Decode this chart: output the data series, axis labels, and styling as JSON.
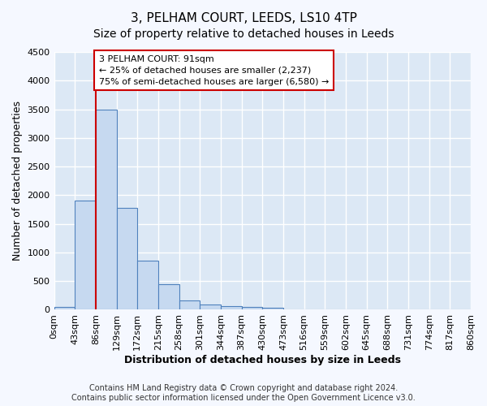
{
  "title_line1": "3, PELHAM COURT, LEEDS, LS10 4TP",
  "title_line2": "Size of property relative to detached houses in Leeds",
  "xlabel": "Distribution of detached houses by size in Leeds",
  "ylabel": "Number of detached properties",
  "bin_labels": [
    "0sqm",
    "43sqm",
    "86sqm",
    "129sqm",
    "172sqm",
    "215sqm",
    "258sqm",
    "301sqm",
    "344sqm",
    "387sqm",
    "430sqm",
    "473sqm",
    "516sqm",
    "559sqm",
    "602sqm",
    "645sqm",
    "688sqm",
    "731sqm",
    "774sqm",
    "817sqm",
    "860sqm"
  ],
  "bar_heights": [
    50,
    1900,
    3500,
    1780,
    850,
    450,
    165,
    90,
    60,
    50,
    30,
    0,
    0,
    0,
    0,
    0,
    0,
    0,
    0,
    0
  ],
  "bar_color": "#c6d9f0",
  "bar_edge_color": "#4f81bd",
  "ylim": [
    0,
    4500
  ],
  "yticks": [
    0,
    500,
    1000,
    1500,
    2000,
    2500,
    3000,
    3500,
    4000,
    4500
  ],
  "vline_x_bar_index": 2,
  "vline_color": "#cc0000",
  "annotation_text_line1": "3 PELHAM COURT: 91sqm",
  "annotation_text_line2": "← 25% of detached houses are smaller (2,237)",
  "annotation_text_line3": "75% of semi-detached houses are larger (6,580) →",
  "annotation_box_color": "#ffffff",
  "annotation_box_edge_color": "#cc0000",
  "footer_line1": "Contains HM Land Registry data © Crown copyright and database right 2024.",
  "footer_line2": "Contains public sector information licensed under the Open Government Licence v3.0.",
  "fig_bg_color": "#f5f8ff",
  "plot_bg_color": "#dce8f5",
  "grid_color": "#ffffff",
  "title_fontsize": 11,
  "subtitle_fontsize": 10,
  "axis_label_fontsize": 9,
  "tick_fontsize": 8,
  "footer_fontsize": 7,
  "annotation_fontsize": 8
}
